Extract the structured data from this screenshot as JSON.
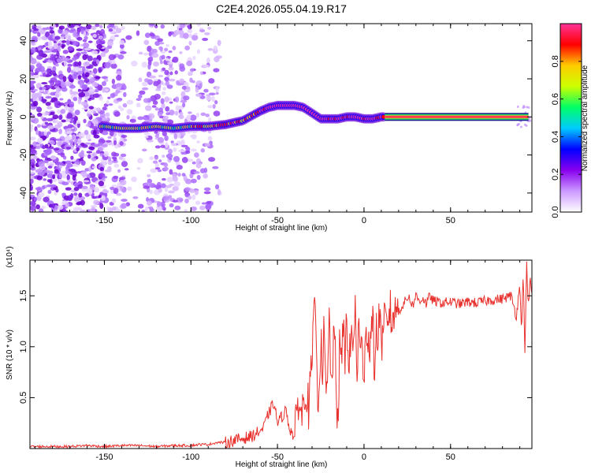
{
  "title": "C2E4.2026.055.04.19.R17",
  "chart_data": [
    {
      "type": "heatmap",
      "name": "spectrogram",
      "xlabel": "Height of straight line (km)",
      "ylabel": "Frequency (Hz)",
      "xlim": [
        -193,
        97
      ],
      "ylim": [
        -50,
        49
      ],
      "xticks": [
        -150,
        -100,
        -50,
        0,
        50
      ],
      "yticks": [
        -40,
        -20,
        0,
        20,
        40
      ],
      "xtick_labels": [
        "-150",
        "-100",
        "-50",
        "0",
        "50"
      ],
      "ytick_labels": [
        "-40",
        "-20",
        "0",
        "20",
        "40"
      ],
      "ridge_x": [
        -150,
        -140,
        -130,
        -120,
        -110,
        -100,
        -90,
        -80,
        -70,
        -60,
        -55,
        -50,
        -45,
        -40,
        -35,
        -30,
        -25,
        -20,
        -15,
        -10,
        -5,
        0,
        5,
        10,
        15,
        50,
        95
      ],
      "ridge_y": [
        -5,
        -6,
        -6,
        -5,
        -6,
        -5,
        -5,
        -4,
        -2,
        3,
        5,
        6,
        6,
        6,
        5,
        2,
        -1,
        -1,
        -1,
        0,
        0,
        -1,
        -1,
        0,
        0,
        0,
        0
      ],
      "colorbar": {
        "label": "Normalized spectral amplitude",
        "ticks": [
          0.0,
          0.2,
          0.4,
          0.6,
          0.8
        ],
        "tick_labels": [
          "0.0",
          "0.2",
          "0.4",
          "0.6",
          "0.8"
        ],
        "range": [
          0,
          1
        ],
        "colors": [
          "#ffffff",
          "#cc99ff",
          "#8800ee",
          "#0000ff",
          "#00ccff",
          "#00ff66",
          "#ccff00",
          "#ffcc00",
          "#ff0000",
          "#ff3399"
        ]
      }
    },
    {
      "type": "line",
      "name": "snr",
      "xlabel": "Height of straight line (km)",
      "ylabel": "SNR (10 * v/v)",
      "scale_label": "(x10⁴)",
      "xlim": [
        -193,
        97
      ],
      "ylim": [
        0,
        1.85
      ],
      "xticks": [
        -150,
        -100,
        -50,
        0,
        50
      ],
      "yticks": [
        0.5,
        1.0,
        1.5
      ],
      "xtick_labels": [
        "-150",
        "-100",
        "-50",
        "0",
        "50"
      ],
      "ytick_labels": [
        "0.5",
        "1.0",
        "1.5"
      ],
      "color": "#e8302c",
      "series": [
        {
          "name": "SNR",
          "x": [
            -193,
            -180,
            -170,
            -160,
            -150,
            -140,
            -130,
            -120,
            -110,
            -100,
            -95,
            -90,
            -85,
            -80,
            -75,
            -70,
            -65,
            -62,
            -58,
            -55,
            -52,
            -50,
            -48,
            -45,
            -43,
            -40,
            -38,
            -36,
            -34,
            -32,
            -30,
            -28,
            -27,
            -26,
            -25,
            -24,
            -23,
            -22,
            -21,
            -20,
            -19,
            -18,
            -17,
            -16,
            -15,
            -14,
            -13,
            -12,
            -11,
            -10,
            -9,
            -8,
            -7,
            -6,
            -5,
            -4,
            -3,
            -2,
            -1,
            0,
            1,
            2,
            3,
            4,
            5,
            6,
            7,
            8,
            9,
            10,
            11,
            12,
            13,
            14,
            15,
            16,
            17,
            18,
            19,
            20,
            22,
            24,
            26,
            28,
            30,
            32,
            34,
            36,
            38,
            40,
            45,
            50,
            55,
            60,
            65,
            70,
            75,
            80,
            85,
            88,
            90,
            91,
            92,
            93,
            94,
            95,
            96,
            97
          ],
          "y": [
            0.02,
            0.02,
            0.02,
            0.03,
            0.02,
            0.03,
            0.03,
            0.02,
            0.03,
            0.03,
            0.04,
            0.04,
            0.06,
            0.06,
            0.08,
            0.1,
            0.12,
            0.15,
            0.2,
            0.35,
            0.45,
            0.25,
            0.3,
            0.38,
            0.2,
            0.1,
            0.5,
            0.3,
            0.62,
            0.4,
            0.85,
            1.55,
            0.45,
            0.65,
            1.05,
            0.8,
            1.2,
            0.4,
            0.7,
            1.3,
            0.6,
            0.9,
            1.15,
            0.5,
            0.25,
            1.1,
            0.75,
            1.3,
            0.8,
            1.5,
            0.6,
            1.0,
            1.2,
            0.9,
            1.45,
            0.7,
            1.25,
            0.85,
            1.05,
            0.7,
            1.3,
            0.95,
            1.1,
            1.0,
            1.35,
            0.75,
            1.2,
            1.0,
            1.4,
            1.1,
            0.95,
            1.35,
            1.15,
            1.3,
            1.4,
            1.2,
            1.35,
            1.3,
            1.45,
            1.35,
            1.4,
            1.45,
            1.5,
            1.4,
            1.5,
            1.45,
            1.48,
            1.42,
            1.5,
            1.45,
            1.43,
            1.44,
            1.42,
            1.44,
            1.43,
            1.45,
            1.46,
            1.47,
            1.5,
            1.3,
            1.6,
            1.2,
            1.7,
            0.95,
            1.8,
            1.4,
            1.65,
            1.5
          ]
        }
      ]
    }
  ]
}
